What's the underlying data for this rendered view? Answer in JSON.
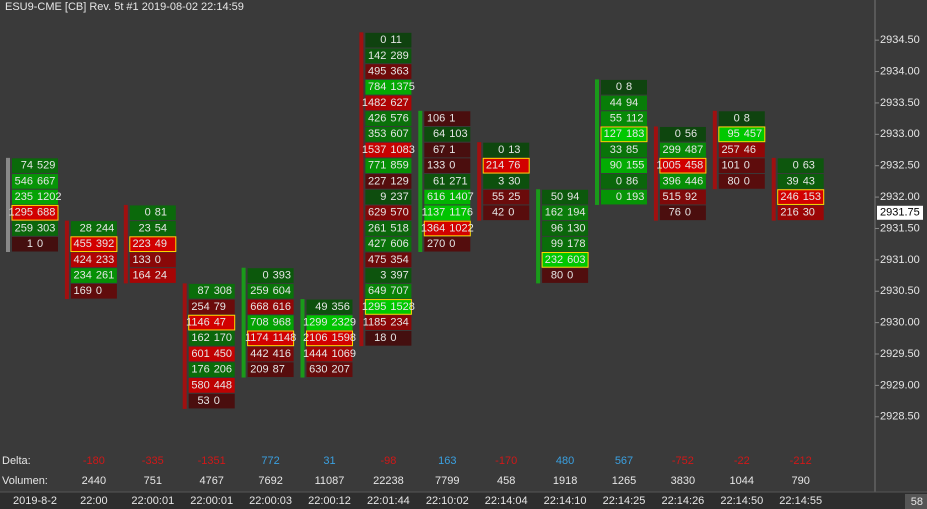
{
  "chart_data": {
    "type": "footprint",
    "title": "ESU9-CME [CB]  Rev. 5t  #1 2019-08-02 22:14:59",
    "delta_label": "Delta:",
    "volume_label": "Volumen:",
    "last_price": {
      "value": 2931.75,
      "label": "2931.75"
    },
    "corner_label": "58",
    "ylim": [
      2928.13,
      2935.14
    ],
    "yticks": [
      {
        "value": 2928.5,
        "label": "2928.50"
      },
      {
        "value": 2929,
        "label": "2929.00"
      },
      {
        "value": 2929.5,
        "label": "2929.50"
      },
      {
        "value": 2930,
        "label": "2930.00"
      },
      {
        "value": 2930.5,
        "label": "2930.50"
      },
      {
        "value": 2931,
        "label": "2931.00"
      },
      {
        "value": 2931.5,
        "label": "2931.50"
      },
      {
        "value": 2932,
        "label": "2932.00"
      },
      {
        "value": 2932.5,
        "label": "2932.50"
      },
      {
        "value": 2933,
        "label": "2933.00"
      },
      {
        "value": 2933.5,
        "label": "2933.50"
      },
      {
        "value": 2934,
        "label": "2934.00"
      },
      {
        "value": 2934.5,
        "label": "2934.50"
      }
    ],
    "columns": [
      {
        "time": "2019-8-2",
        "delta": null,
        "volume": null,
        "rows": [
          [
            2932.5,
            74,
            529
          ],
          [
            2932.25,
            546,
            667
          ],
          [
            2932,
            235,
            1202
          ],
          [
            2931.75,
            1295,
            688
          ],
          [
            2931.5,
            259,
            303
          ],
          [
            2931.25,
            1,
            0
          ]
        ]
      },
      {
        "time": "22:00",
        "delta": -180,
        "volume": 2440,
        "rows": [
          [
            2931.5,
            28,
            244
          ],
          [
            2931.25,
            455,
            392
          ],
          [
            2931,
            424,
            233
          ],
          [
            2930.75,
            234,
            261
          ],
          [
            2930.5,
            169,
            0
          ]
        ]
      },
      {
        "time": "22:00:01",
        "delta": -335,
        "volume": 751,
        "rows": [
          [
            2931.75,
            0,
            81
          ],
          [
            2931.5,
            23,
            54
          ],
          [
            2931.25,
            223,
            49
          ],
          [
            2931,
            133,
            0
          ],
          [
            2930.75,
            164,
            24
          ]
        ]
      },
      {
        "time": "22:00:01",
        "delta": -1351,
        "volume": 4767,
        "rows": [
          [
            2930.5,
            87,
            308
          ],
          [
            2930.25,
            254,
            79
          ],
          [
            2930,
            1146,
            47
          ],
          [
            2929.75,
            162,
            170
          ],
          [
            2929.5,
            601,
            450
          ],
          [
            2929.25,
            176,
            206
          ],
          [
            2929,
            580,
            448
          ],
          [
            2928.75,
            53,
            0
          ]
        ]
      },
      {
        "time": "22:00:03",
        "delta": 772,
        "volume": 7692,
        "rows": [
          [
            2930.75,
            0,
            393
          ],
          [
            2930.5,
            259,
            604
          ],
          [
            2930.25,
            668,
            616
          ],
          [
            2930,
            708,
            968
          ],
          [
            2929.75,
            1174,
            1148
          ],
          [
            2929.5,
            442,
            416
          ],
          [
            2929.25,
            209,
            87
          ]
        ]
      },
      {
        "time": "22:00:12",
        "delta": 31,
        "volume": 11087,
        "rows": [
          [
            2930.25,
            49,
            356
          ],
          [
            2930,
            1299,
            2329
          ],
          [
            2929.75,
            2106,
            1598
          ],
          [
            2929.5,
            1444,
            1069
          ],
          [
            2929.25,
            630,
            207
          ]
        ]
      },
      {
        "time": "22:01:44",
        "delta": -98,
        "volume": 22238,
        "rows": [
          [
            2934.5,
            0,
            11
          ],
          [
            2934.25,
            142,
            289
          ],
          [
            2934,
            495,
            363
          ],
          [
            2933.75,
            784,
            1375
          ],
          [
            2933.5,
            1482,
            627
          ],
          [
            2933.25,
            426,
            576
          ],
          [
            2933,
            353,
            607
          ],
          [
            2932.75,
            1537,
            1083
          ],
          [
            2932.5,
            771,
            859
          ],
          [
            2932.25,
            227,
            129
          ],
          [
            2932,
            9,
            237
          ],
          [
            2931.75,
            629,
            570
          ],
          [
            2931.5,
            261,
            518
          ],
          [
            2931.25,
            427,
            606
          ],
          [
            2931,
            475,
            354
          ],
          [
            2930.75,
            3,
            397
          ],
          [
            2930.5,
            649,
            707
          ],
          [
            2930.25,
            1295,
            1528
          ],
          [
            2930,
            1185,
            234
          ],
          [
            2929.75,
            18,
            0
          ]
        ]
      },
      {
        "time": "22:10:02",
        "delta": 163,
        "volume": 7799,
        "rows": [
          [
            2933.25,
            106,
            1
          ],
          [
            2933,
            64,
            103
          ],
          [
            2932.75,
            67,
            1
          ],
          [
            2932.5,
            133,
            0
          ],
          [
            2932.25,
            61,
            271
          ],
          [
            2932,
            616,
            1407
          ],
          [
            2931.75,
            1137,
            1176
          ],
          [
            2931.5,
            1364,
            1022
          ],
          [
            2931.25,
            270,
            0
          ]
        ]
      },
      {
        "time": "22:14:04",
        "delta": -170,
        "volume": 458,
        "rows": [
          [
            2932.75,
            0,
            13
          ],
          [
            2932.5,
            214,
            76
          ],
          [
            2932.25,
            3,
            30
          ],
          [
            2932,
            55,
            25
          ],
          [
            2931.75,
            42,
            0
          ]
        ]
      },
      {
        "time": "22:14:10",
        "delta": 480,
        "volume": 1918,
        "rows": [
          [
            2932,
            50,
            94
          ],
          [
            2931.75,
            162,
            194
          ],
          [
            2931.5,
            96,
            130
          ],
          [
            2931.25,
            99,
            178
          ],
          [
            2931,
            232,
            603
          ],
          [
            2930.75,
            80,
            0
          ]
        ]
      },
      {
        "time": "22:14:25",
        "delta": 567,
        "volume": 1265,
        "rows": [
          [
            2933.75,
            0,
            8
          ],
          [
            2933.5,
            44,
            94
          ],
          [
            2933.25,
            55,
            112
          ],
          [
            2933,
            127,
            183
          ],
          [
            2932.75,
            33,
            85
          ],
          [
            2932.5,
            90,
            155
          ],
          [
            2932.25,
            0,
            86
          ],
          [
            2932,
            0,
            193
          ]
        ]
      },
      {
        "time": "22:14:26",
        "delta": -752,
        "volume": 3830,
        "rows": [
          [
            2933,
            0,
            56
          ],
          [
            2932.75,
            299,
            487
          ],
          [
            2932.5,
            1005,
            458
          ],
          [
            2932.25,
            396,
            446
          ],
          [
            2932,
            515,
            92
          ],
          [
            2931.75,
            76,
            0
          ]
        ]
      },
      {
        "time": "22:14:50",
        "delta": -22,
        "volume": 1044,
        "rows": [
          [
            2933.25,
            0,
            8
          ],
          [
            2933,
            95,
            457
          ],
          [
            2932.75,
            257,
            46
          ],
          [
            2932.5,
            101,
            0
          ],
          [
            2932.25,
            80,
            0
          ]
        ]
      },
      {
        "time": "22:14:55",
        "delta": -212,
        "volume": 790,
        "rows": [
          [
            2932.5,
            0,
            63
          ],
          [
            2932.25,
            39,
            43
          ],
          [
            2932,
            246,
            153
          ],
          [
            2931.75,
            216,
            30
          ]
        ]
      }
    ]
  }
}
